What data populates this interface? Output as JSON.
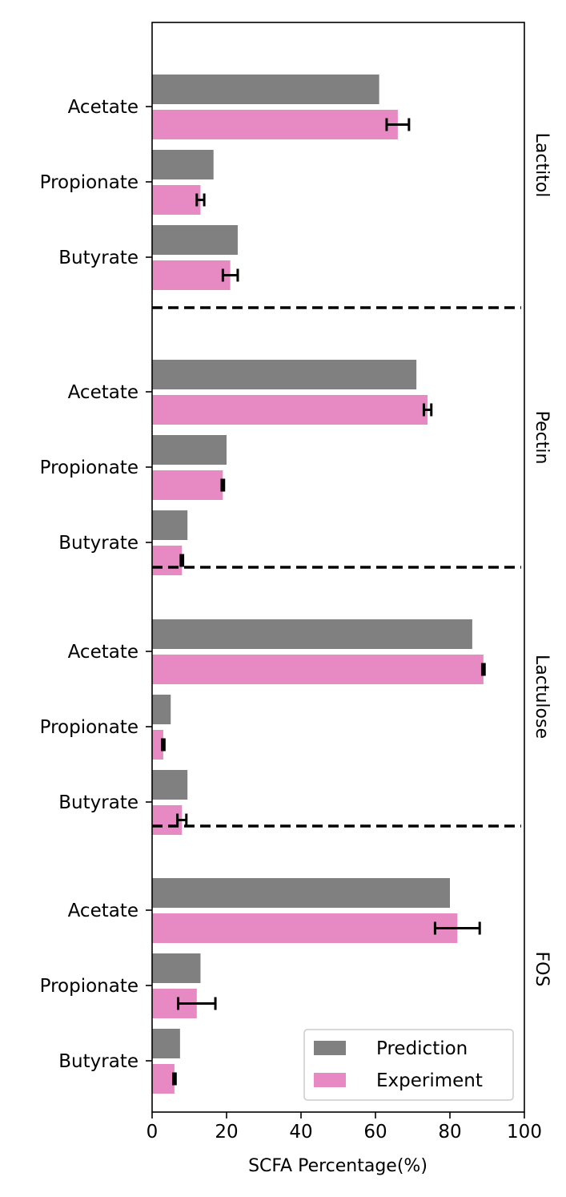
{
  "chart_data": {
    "type": "bar",
    "orientation": "horizontal",
    "xlabel": "SCFA Percentage(%)",
    "xlim": [
      0,
      100
    ],
    "xticks": [
      "0",
      "20",
      "40",
      "60",
      "80",
      "100"
    ],
    "categories": [
      "Acetate",
      "Propionate",
      "Butyrate"
    ],
    "legend_position": "bottom-right",
    "series_meta": [
      {
        "name": "Prediction",
        "color": "#808080"
      },
      {
        "name": "Experiment",
        "color": "#e78ac3"
      }
    ],
    "groups": [
      {
        "name": "Lactitol",
        "prediction": [
          61,
          16.5,
          23
        ],
        "experiment": [
          66,
          13,
          21
        ],
        "experiment_error": [
          3,
          1,
          2
        ]
      },
      {
        "name": "Pectin",
        "prediction": [
          71,
          20,
          9.5
        ],
        "experiment": [
          74,
          19,
          8
        ],
        "experiment_error": [
          1,
          0.3,
          0.3
        ]
      },
      {
        "name": "Lactulose",
        "prediction": [
          86,
          5,
          9.5
        ],
        "experiment": [
          89,
          3,
          8
        ],
        "experiment_error": [
          0.3,
          0.3,
          1.2
        ]
      },
      {
        "name": "FOS",
        "prediction": [
          80,
          13,
          7.5
        ],
        "experiment": [
          82,
          12,
          6
        ],
        "experiment_error": [
          6,
          5,
          0.3
        ]
      }
    ],
    "grid": false
  }
}
